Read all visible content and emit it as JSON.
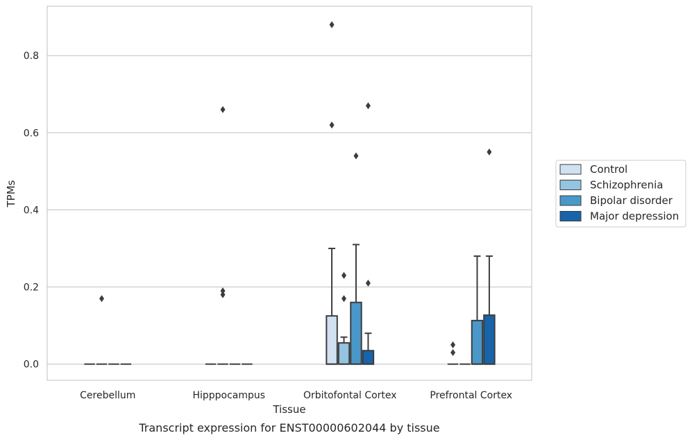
{
  "chart_data": {
    "type": "box",
    "title": "",
    "caption": "Transcript expression for ENST00000602044 by tissue",
    "xlabel": "Tissue",
    "ylabel": "TPMs",
    "ylim": [
      -0.042,
      0.928
    ],
    "yticks": [
      0.0,
      0.2,
      0.4,
      0.6,
      0.8
    ],
    "ytick_labels": [
      "0.0",
      "0.2",
      "0.4",
      "0.6",
      "0.8"
    ],
    "grid": "horizontal",
    "legend_position": "right",
    "categories": [
      "Cerebellum",
      "Hipppocampus",
      "Orbitofontal Cortex",
      "Prefrontal Cortex"
    ],
    "series": [
      {
        "name": "Control",
        "color": "#d0e1f2",
        "boxes": [
          {
            "q1": 0,
            "median": 0,
            "q3": 0,
            "whisker_low": 0,
            "whisker_high": 0,
            "outliers": []
          },
          {
            "q1": 0,
            "median": 0,
            "q3": 0,
            "whisker_low": 0,
            "whisker_high": 0,
            "outliers": []
          },
          {
            "q1": 0,
            "median": 0,
            "q3": 0.125,
            "whisker_low": 0,
            "whisker_high": 0.3,
            "outliers": [
              0.62,
              0.88
            ]
          },
          {
            "q1": 0,
            "median": 0,
            "q3": 0,
            "whisker_low": 0,
            "whisker_high": 0,
            "outliers": [
              0.03,
              0.05
            ]
          }
        ]
      },
      {
        "name": "Schizophrenia",
        "color": "#94c4df",
        "boxes": [
          {
            "q1": 0,
            "median": 0,
            "q3": 0,
            "whisker_low": 0,
            "whisker_high": 0,
            "outliers": [
              0.17
            ]
          },
          {
            "q1": 0,
            "median": 0,
            "q3": 0,
            "whisker_low": 0,
            "whisker_high": 0,
            "outliers": [
              0.18,
              0.19,
              0.66
            ]
          },
          {
            "q1": 0,
            "median": 0,
            "q3": 0.055,
            "whisker_low": 0,
            "whisker_high": 0.07,
            "outliers": [
              0.17,
              0.23
            ]
          },
          {
            "q1": 0,
            "median": 0,
            "q3": 0,
            "whisker_low": 0,
            "whisker_high": 0,
            "outliers": []
          }
        ]
      },
      {
        "name": "Bipolar disorder",
        "color": "#4a98c9",
        "boxes": [
          {
            "q1": 0,
            "median": 0,
            "q3": 0,
            "whisker_low": 0,
            "whisker_high": 0,
            "outliers": []
          },
          {
            "q1": 0,
            "median": 0,
            "q3": 0,
            "whisker_low": 0,
            "whisker_high": 0,
            "outliers": []
          },
          {
            "q1": 0,
            "median": 0,
            "q3": 0.16,
            "whisker_low": 0,
            "whisker_high": 0.31,
            "outliers": [
              0.54
            ]
          },
          {
            "q1": 0,
            "median": 0,
            "q3": 0.113,
            "whisker_low": 0,
            "whisker_high": 0.28,
            "outliers": []
          }
        ]
      },
      {
        "name": "Major depression",
        "color": "#1764ab",
        "boxes": [
          {
            "q1": 0,
            "median": 0,
            "q3": 0,
            "whisker_low": 0,
            "whisker_high": 0,
            "outliers": []
          },
          {
            "q1": 0,
            "median": 0,
            "q3": 0,
            "whisker_low": 0,
            "whisker_high": 0,
            "outliers": []
          },
          {
            "q1": 0,
            "median": 0,
            "q3": 0.035,
            "whisker_low": 0,
            "whisker_high": 0.08,
            "outliers": [
              0.21,
              0.67
            ]
          },
          {
            "q1": 0,
            "median": 0,
            "q3": 0.127,
            "whisker_low": 0,
            "whisker_high": 0.28,
            "outliers": [
              0.55
            ]
          }
        ]
      }
    ]
  }
}
